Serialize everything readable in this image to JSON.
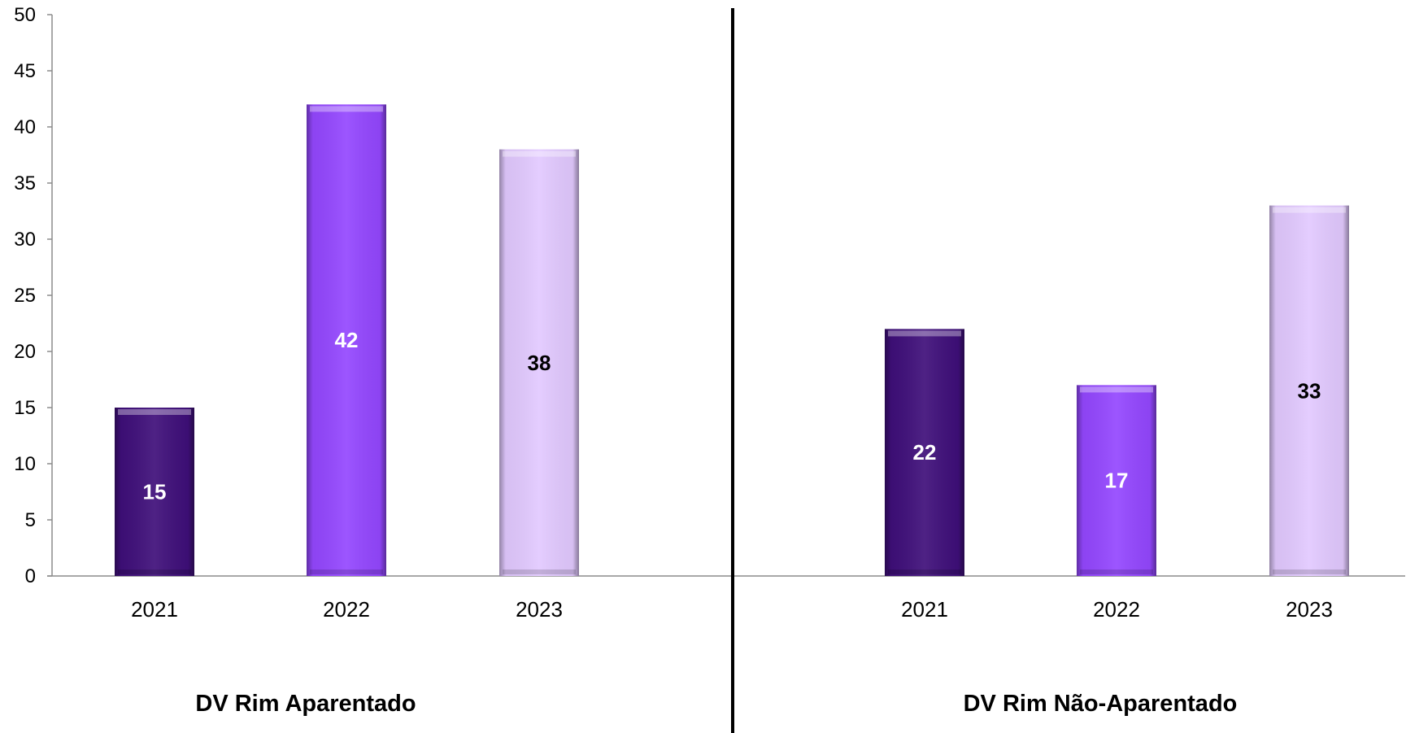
{
  "chart_data": {
    "type": "bar",
    "ylim": [
      0,
      50
    ],
    "yticks": [
      0,
      5,
      10,
      15,
      20,
      25,
      30,
      35,
      40,
      45,
      50
    ],
    "grid": false,
    "groups": [
      {
        "title": "DV Rim Aparentado",
        "categories": [
          "2021",
          "2022",
          "2023"
        ],
        "values": [
          15,
          42,
          38
        ]
      },
      {
        "title": "DV Rim Não-Aparentado",
        "categories": [
          "2021",
          "2022",
          "2023"
        ],
        "values": [
          22,
          17,
          33
        ]
      }
    ],
    "bar_colors": [
      "#3f0f7a",
      "#9447ff",
      "#e2c9ff"
    ],
    "label_colors": [
      "#ffffff",
      "#ffffff",
      "#000000"
    ]
  }
}
